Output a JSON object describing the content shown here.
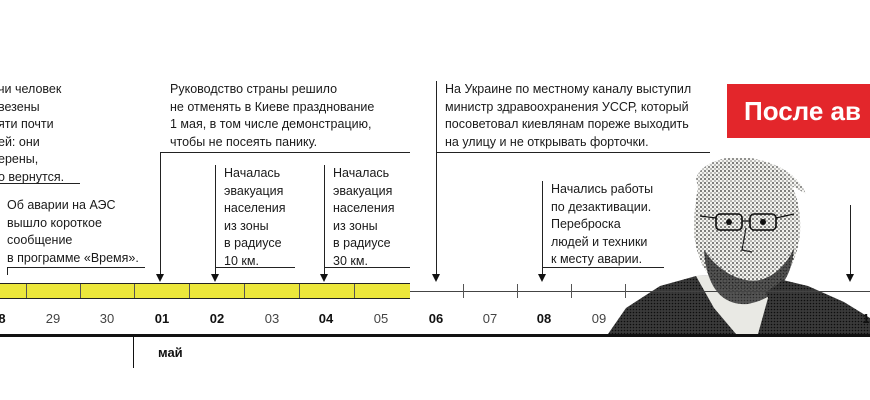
{
  "notes": {
    "n1": "чи человек\nвезены\nяти почти\nей: они\nерены,\nо вернутся.",
    "n2": "Об аварии на АЭС\nвышло короткое\nсообщение\nв программе «Время».",
    "n3": "Руководство страны решило\nне отменять в Киеве празднование\n1 мая, в том числе демонстрацию,\nчтобы не посеять панику.",
    "n4": "Началась\nэвакуация\nнаселения\nиз зоны\nв радиусе\n10 км.",
    "n5": "Началась\nэвакуация\nнаселения\nиз зоны\nв радиусе\n30 км.",
    "n6": "На Украине по местному каналу выступил\nминистр здравоохранения УССР, который\nпосоветовал киевлянам пореже выходить\nна улицу и не открывать форточки.",
    "n7": "Начались работы\nпо дезактивации.\nПереброска\nлюдей и техники\nк месту аварии."
  },
  "banner": {
    "text": "После ав"
  },
  "timeline": {
    "days": [
      {
        "label": "8",
        "bold": true
      },
      {
        "label": "29",
        "bold": false
      },
      {
        "label": "30",
        "bold": false
      },
      {
        "label": "01",
        "bold": true
      },
      {
        "label": "02",
        "bold": true
      },
      {
        "label": "03",
        "bold": false
      },
      {
        "label": "04",
        "bold": true
      },
      {
        "label": "05",
        "bold": false
      },
      {
        "label": "06",
        "bold": true
      },
      {
        "label": "07",
        "bold": false
      },
      {
        "label": "08",
        "bold": true
      },
      {
        "label": "09",
        "bold": false
      },
      {
        "label": "1",
        "bold": true
      }
    ],
    "month": "май"
  },
  "colors": {
    "timeline_highlight": "#ece73b",
    "banner_bg": "#e3262b",
    "text": "#1a1a1a"
  }
}
